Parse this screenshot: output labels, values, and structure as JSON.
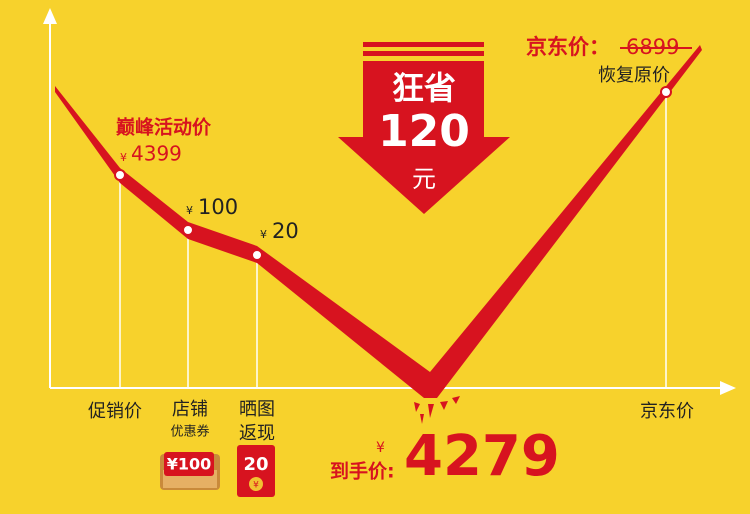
{
  "jd_price": {
    "label": "京东价：",
    "price": "6899",
    "note": "恢复原价"
  },
  "savings": {
    "line1": "狂省",
    "amount": "120",
    "unit": "元"
  },
  "peak": {
    "title": "巅峰活动价",
    "currency": "¥",
    "price": "4399"
  },
  "coupon": {
    "currency": "¥",
    "amount": "100"
  },
  "review": {
    "currency": "¥",
    "amount": "20"
  },
  "axis_labels": [
    "促销价",
    "店铺",
    "优惠券",
    "晒图",
    "返现",
    "京东价"
  ],
  "badges": {
    "coupon": "¥100",
    "envelope": "20",
    "envelope_icon": "¥"
  },
  "final": {
    "label": "到手价:",
    "currency": "¥",
    "price": "4279"
  }
}
